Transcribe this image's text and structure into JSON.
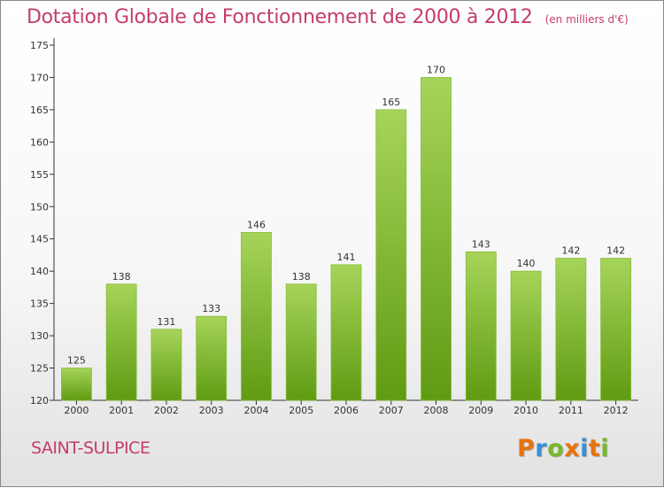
{
  "title": "Dotation Globale de Fonctionnement de 2000 à 2012",
  "unit": "(en milliers d'€)",
  "commune": "SAINT-SULPICE",
  "logo": {
    "letters": [
      "P",
      "r",
      "o",
      "x",
      "i",
      "t",
      "i"
    ],
    "colors": [
      "#e8720c",
      "#3a8fd6",
      "#78b82a",
      "#e8720c",
      "#3a8fd6",
      "#e8720c",
      "#78b82a"
    ]
  },
  "colors": {
    "bar_light": "#a6d45a",
    "bar_dark": "#5f9b12",
    "title": "#c43d6c"
  },
  "chart_data": {
    "type": "bar",
    "title": "Dotation Globale de Fonctionnement de 2000 à 2012",
    "categories": [
      "2000",
      "2001",
      "2002",
      "2003",
      "2004",
      "2005",
      "2006",
      "2007",
      "2008",
      "2009",
      "2010",
      "2011",
      "2012"
    ],
    "values": [
      125,
      138,
      131,
      133,
      146,
      138,
      141,
      165,
      170,
      143,
      140,
      142,
      142
    ],
    "ylim": [
      120,
      175
    ],
    "yticks": [
      120,
      125,
      130,
      135,
      140,
      145,
      150,
      155,
      160,
      165,
      170,
      175
    ],
    "grid": false,
    "xlabel": "",
    "ylabel": ""
  }
}
